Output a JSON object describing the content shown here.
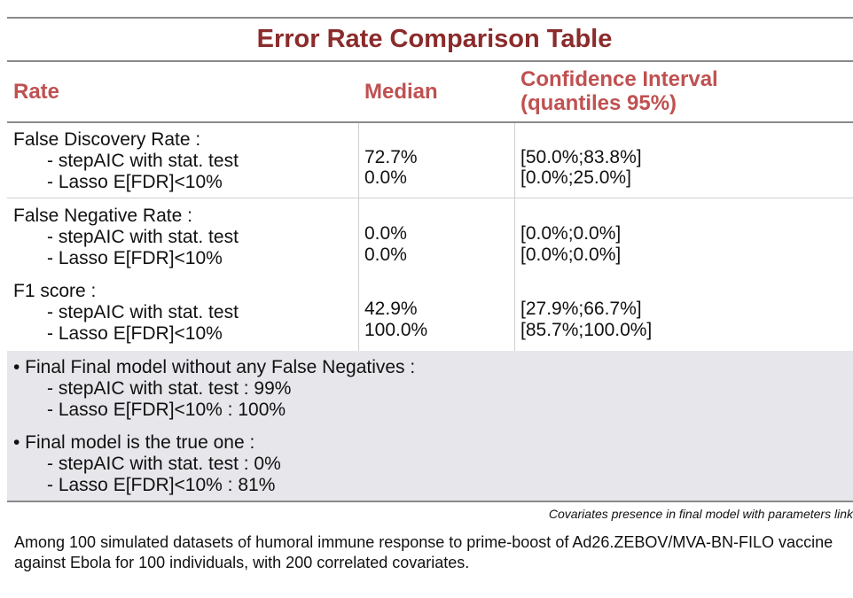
{
  "title": "Error Rate Comparison Table",
  "headers": {
    "rate": "Rate",
    "median": "Median",
    "ci_line1": "Confidence Interval",
    "ci_line2": "(quantiles 95%)"
  },
  "rows": [
    {
      "label": "False Discovery Rate :",
      "methods": [
        "- stepAIC with stat. test",
        "- Lasso E[FDR]<10%"
      ],
      "medians": [
        "72.7%",
        "0.0%"
      ],
      "intervals": [
        "[50.0%;83.8%]",
        "[0.0%;25.0%]"
      ]
    },
    {
      "label": "False Negative Rate :",
      "methods": [
        "- stepAIC with stat. test",
        "- Lasso E[FDR]<10%"
      ],
      "medians": [
        "0.0%",
        "0.0%"
      ],
      "intervals": [
        "[0.0%;0.0%]",
        "[0.0%;0.0%]"
      ]
    },
    {
      "label": "F1 score :",
      "methods": [
        "- stepAIC with stat. test",
        "- Lasso E[FDR]<10%"
      ],
      "medians": [
        "42.9%",
        "100.0%"
      ],
      "intervals": [
        "[27.9%;66.7%]",
        "[85.7%;100.0%]"
      ]
    }
  ],
  "summary": [
    {
      "heading": "• Final Final model without any False Negatives :",
      "items": [
        "- stepAIC with stat. test : 99%",
        "- Lasso E[FDR]<10% : 100%"
      ]
    },
    {
      "heading": "• Final model is the true one :",
      "items": [
        "- stepAIC with stat. test : 0%",
        "- Lasso E[FDR]<10% : 81%"
      ]
    }
  ],
  "footnote": "Covariates presence in final model with parameters link",
  "caption": "Among 100 simulated datasets of humoral immune response to prime-boost of Ad26.ZEBOV/MVA-BN-FILO vaccine against Ebola for 100 individuals, with 200 correlated covariates.",
  "colors": {
    "title": "#8b2b2b",
    "header": "#c05151",
    "summary_bg": "#e6e6eb"
  }
}
